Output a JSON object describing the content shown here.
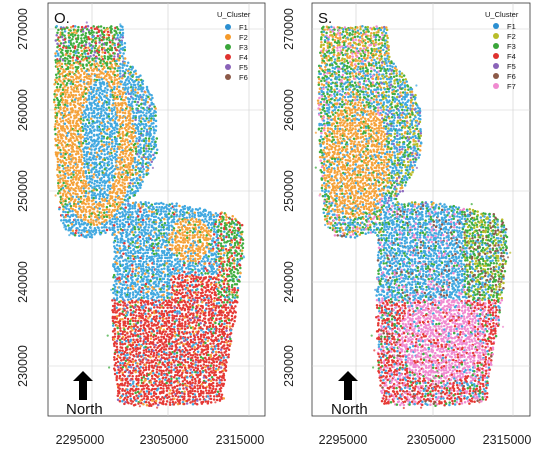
{
  "panels": [
    {
      "id": "O",
      "title": "O.",
      "legend": {
        "title": "U_Cluster",
        "entries": [
          {
            "label": "F1",
            "color": "#2b8fd1"
          },
          {
            "label": "F2",
            "color": "#f59a2a"
          },
          {
            "label": "F3",
            "color": "#3aa63a"
          },
          {
            "label": "F4",
            "color": "#e0322f"
          },
          {
            "label": "F5",
            "color": "#8a63b8"
          },
          {
            "label": "F6",
            "color": "#8c5a48"
          }
        ]
      },
      "y_ticks": [
        "270000",
        "260000",
        "250000",
        "240000",
        "230000"
      ],
      "x_ticks": [
        "2295000",
        "2305000",
        "2315000"
      ],
      "north_label": "North"
    },
    {
      "id": "S",
      "title": "S.",
      "legend": {
        "title": "U_Cluster",
        "entries": [
          {
            "label": "F1",
            "color": "#2b8fd1"
          },
          {
            "label": "F2",
            "color": "#b8bd2a"
          },
          {
            "label": "F3",
            "color": "#3aa63a"
          },
          {
            "label": "F4",
            "color": "#e0322f"
          },
          {
            "label": "F5",
            "color": "#8a63b8"
          },
          {
            "label": "F6",
            "color": "#8c5a48"
          },
          {
            "label": "F7",
            "color": "#f08ad0"
          }
        ]
      },
      "y_ticks": [
        "270000",
        "260000",
        "250000",
        "240000",
        "230000"
      ],
      "x_ticks": [
        "2295000",
        "2305000",
        "2315000"
      ],
      "north_label": "North"
    }
  ],
  "palette": {
    "sky_blue": "#41a8e0",
    "orange": "#f5a23a",
    "green": "#3fae3f",
    "red": "#e53935",
    "purple": "#8e6cc0",
    "brown": "#8d5b4c",
    "pink": "#f08ad0",
    "olive": "#b8bd2a"
  }
}
